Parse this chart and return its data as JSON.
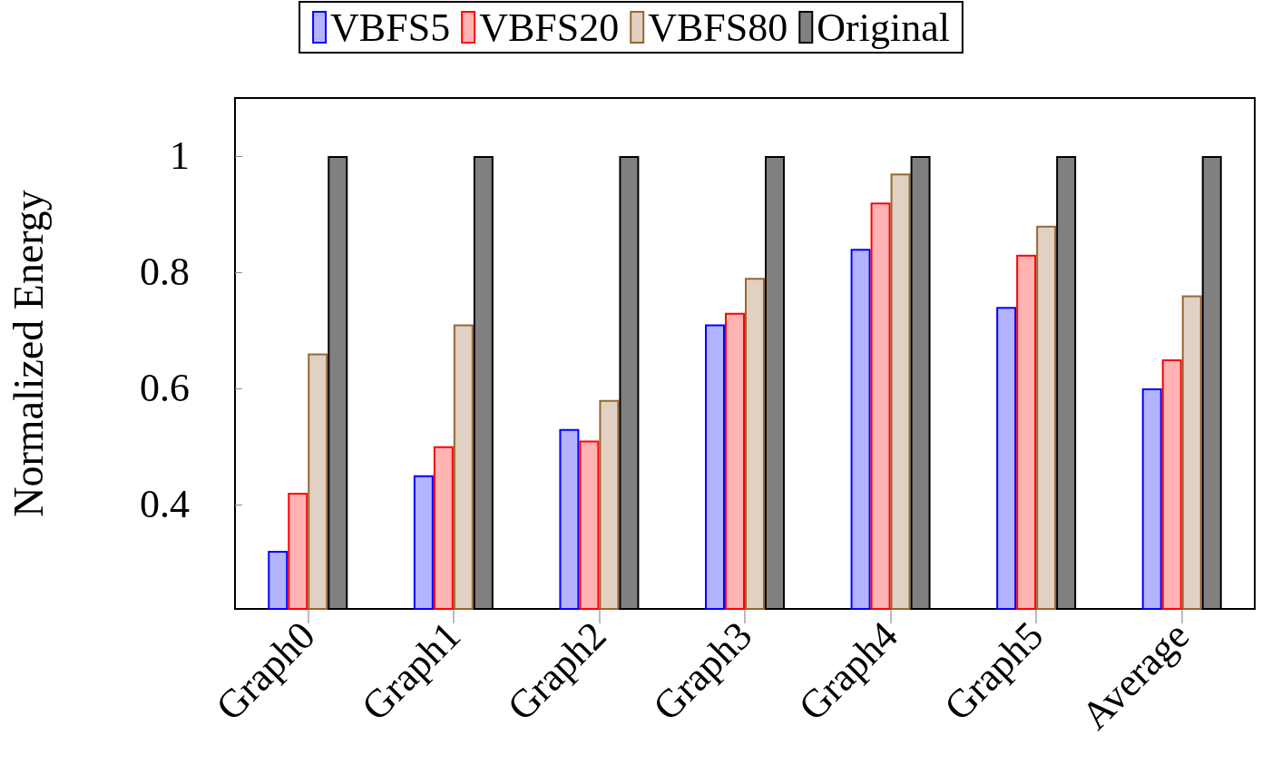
{
  "chart_data": {
    "type": "bar",
    "ylabel": "Normalized Energy",
    "categories": [
      "Graph0",
      "Graph1",
      "Graph2",
      "Graph3",
      "Graph4",
      "Graph5",
      "Average"
    ],
    "series": [
      {
        "name": "VBFS5",
        "color": "#b3b3ff",
        "values": [
          0.32,
          0.45,
          0.53,
          0.71,
          0.84,
          0.74,
          0.6
        ]
      },
      {
        "name": "VBFS20",
        "color": "#ffb3b3",
        "values": [
          0.42,
          0.5,
          0.51,
          0.73,
          0.92,
          0.83,
          0.65
        ]
      },
      {
        "name": "VBFS80",
        "color": "#e0d1c2",
        "values": [
          0.66,
          0.71,
          0.58,
          0.79,
          0.97,
          0.88,
          0.76
        ]
      },
      {
        "name": "Original",
        "color": "#808080",
        "values": [
          1,
          1,
          1,
          1,
          1,
          1,
          1
        ]
      }
    ],
    "ylim": [
      0.22,
      1.1
    ],
    "yticks": [
      0.4,
      0.6,
      0.8,
      1
    ],
    "grid": false,
    "legend": "top"
  }
}
